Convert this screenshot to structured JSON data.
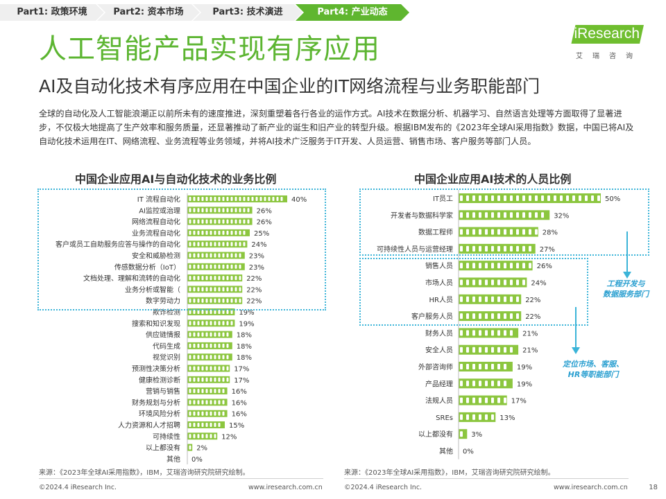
{
  "nav": {
    "tabs": [
      "Part1: 政策环境",
      "Part2: 资本市场",
      "Part3: 技术演进",
      "Part4: 产业动态"
    ],
    "active": 3
  },
  "logo": {
    "mark": "iResearch",
    "sub": "艾瑞咨询"
  },
  "title": "人工智能产品实现有序应用",
  "subtitle": "AI及自动化技术有序应用在中国企业的IT网络流程与业务职能部门",
  "intro": "全球的自动化及人工智能浪潮正以前所未有的速度推进，深刻重塑着各行各业的运作方式。AI技术在数据分析、机器学习、自然语言处理等方面取得了显著进步，不仅极大地提高了生产效率和服务质量，还显著推动了新产业的诞生和旧产业的转型升级。根据IBM发布的《2023年全球AI采用指数》数据，中国已将AI及自动化技术运用在IT、网络流程、业务流程等业务领域，并将AI技术广泛服务于IT开发、人员运营、销售市场、客户服务等部门人员。",
  "annotations": {
    "note1": "工程开发与\n数据服务部门",
    "note2": "定位市场、客服、\nHR等职能部门"
  },
  "sources": {
    "left": "来源：《2023年全球AI采用指数》，IBM，艾瑞咨询研究院研究绘制。",
    "right": "来源：《2023年全球AI采用指数》，IBM，艾瑞咨询研究院研究绘制。"
  },
  "footer": {
    "copyright": "©2024.4 iResearch Inc.",
    "url": "www.iresearch.com.cn",
    "page": "18"
  },
  "colors": {
    "accent": "#5fb62f",
    "bar": "#8cc63f",
    "dotted": "#3bb4d8",
    "note": "#2a9fd0"
  },
  "chart_data": [
    {
      "type": "bar",
      "orientation": "horizontal",
      "title": "中国企业应用AI与自动化技术的业务比例",
      "unit": "%",
      "categories": [
        "IT 流程自动化",
        "AI监控或治理",
        "网络流程自动化",
        "业务流程自动化",
        "客户或员工自助服务应答与操作的自动化",
        "安全和威胁检测",
        "传感数据分析（IoT）",
        "文档处理、理解和流转的自动化",
        "业务分析或智能（",
        "数字劳动力",
        "欺诈检测",
        "搜索和知识发现",
        "供应链情报",
        "代码生成",
        "视觉识别",
        "预测性决策分析",
        "健康检测诊断",
        "营销与销售",
        "财务规划与分析",
        "环境风险分析",
        "人力资源和人才招聘",
        "可持续性",
        "以上都没有",
        "其他"
      ],
      "values": [
        40,
        26,
        26,
        25,
        24,
        23,
        23,
        22,
        22,
        22,
        19,
        19,
        18,
        18,
        18,
        17,
        17,
        16,
        16,
        16,
        15,
        12,
        2,
        0
      ],
      "value_labels": [
        "40%",
        "26%",
        "26%",
        "25%",
        "24%",
        "23%",
        "23%",
        "22%",
        "22%",
        "22%",
        "19%",
        "19%",
        "18%",
        "18%",
        "18%",
        "17%",
        "17%",
        "16%",
        "16%",
        "16%",
        "15%",
        "12%",
        "2%",
        "0%"
      ],
      "highlight_first_n": 10
    },
    {
      "type": "bar",
      "orientation": "horizontal",
      "title": "中国企业应用AI技术的人员比例",
      "unit": "%",
      "categories": [
        "IT员工",
        "开发者与数据科学家",
        "数据工程师",
        "可持续性人员与运营经理",
        "销售人员",
        "市场人员",
        "HR人员",
        "客户服务人员",
        "财务人员",
        "安全人员",
        "外部咨询师",
        "产品经理",
        "法规人员",
        "SREs",
        "以上都没有",
        "其他"
      ],
      "values": [
        50,
        32,
        28,
        27,
        26,
        24,
        22,
        22,
        21,
        21,
        19,
        19,
        17,
        13,
        3,
        0
      ],
      "value_labels": [
        "50%",
        "32%",
        "28%",
        "27%",
        "26%",
        "24%",
        "22%",
        "22%",
        "21%",
        "21%",
        "19%",
        "19%",
        "17%",
        "13%",
        "3%",
        "0%"
      ],
      "groups": [
        [
          0,
          3
        ],
        [
          4,
          7
        ]
      ]
    }
  ]
}
